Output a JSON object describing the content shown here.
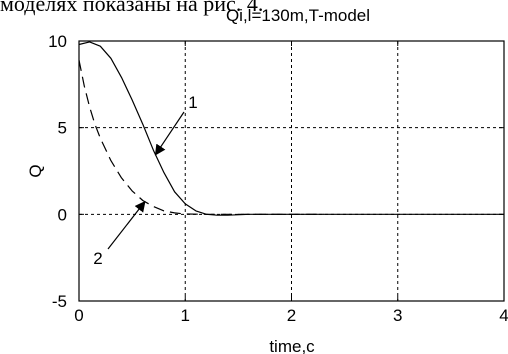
{
  "caption": "моделях показаны на рис. 4.",
  "chart_data": {
    "type": "line",
    "title": "Qi,l=130m,T-model",
    "xlabel": "time,c",
    "ylabel": "Q",
    "xlim": [
      0,
      4
    ],
    "ylim": [
      -5,
      10
    ],
    "x_ticks": [
      "0",
      "1",
      "2",
      "3",
      "4"
    ],
    "y_ticks": [
      "-5",
      "0",
      "5",
      "10"
    ],
    "grid": true,
    "grid_style": "dotted",
    "annotations": [
      {
        "text": "1",
        "points_to_series": 0
      },
      {
        "text": "2",
        "points_to_series": 1
      }
    ],
    "series": [
      {
        "style": "solid",
        "x": [
          0,
          0.1,
          0.2,
          0.3,
          0.4,
          0.5,
          0.6,
          0.7,
          0.8,
          0.9,
          1.0,
          1.1,
          1.2,
          1.3,
          1.4,
          1.6,
          1.8,
          2.0,
          2.2,
          2.4,
          3.0,
          3.5,
          4.0
        ],
        "y": [
          9.8,
          9.95,
          9.7,
          9.0,
          7.9,
          6.6,
          5.2,
          3.7,
          2.4,
          1.3,
          0.6,
          0.2,
          0.0,
          -0.05,
          -0.05,
          0.0,
          0.0,
          0.0,
          0.0,
          0.0,
          0.0,
          0.0,
          0.0
        ]
      },
      {
        "style": "dashed",
        "x": [
          0,
          0.05,
          0.1,
          0.15,
          0.2,
          0.3,
          0.4,
          0.5,
          0.6,
          0.7,
          0.8,
          0.9,
          1.0,
          1.2,
          1.4,
          1.6,
          2.0,
          2.3
        ],
        "y": [
          8.9,
          7.4,
          6.2,
          5.2,
          4.4,
          3.1,
          2.1,
          1.35,
          0.8,
          0.45,
          0.2,
          0.08,
          0.02,
          0.0,
          0.0,
          0.0,
          0.0,
          0.0
        ]
      }
    ]
  }
}
